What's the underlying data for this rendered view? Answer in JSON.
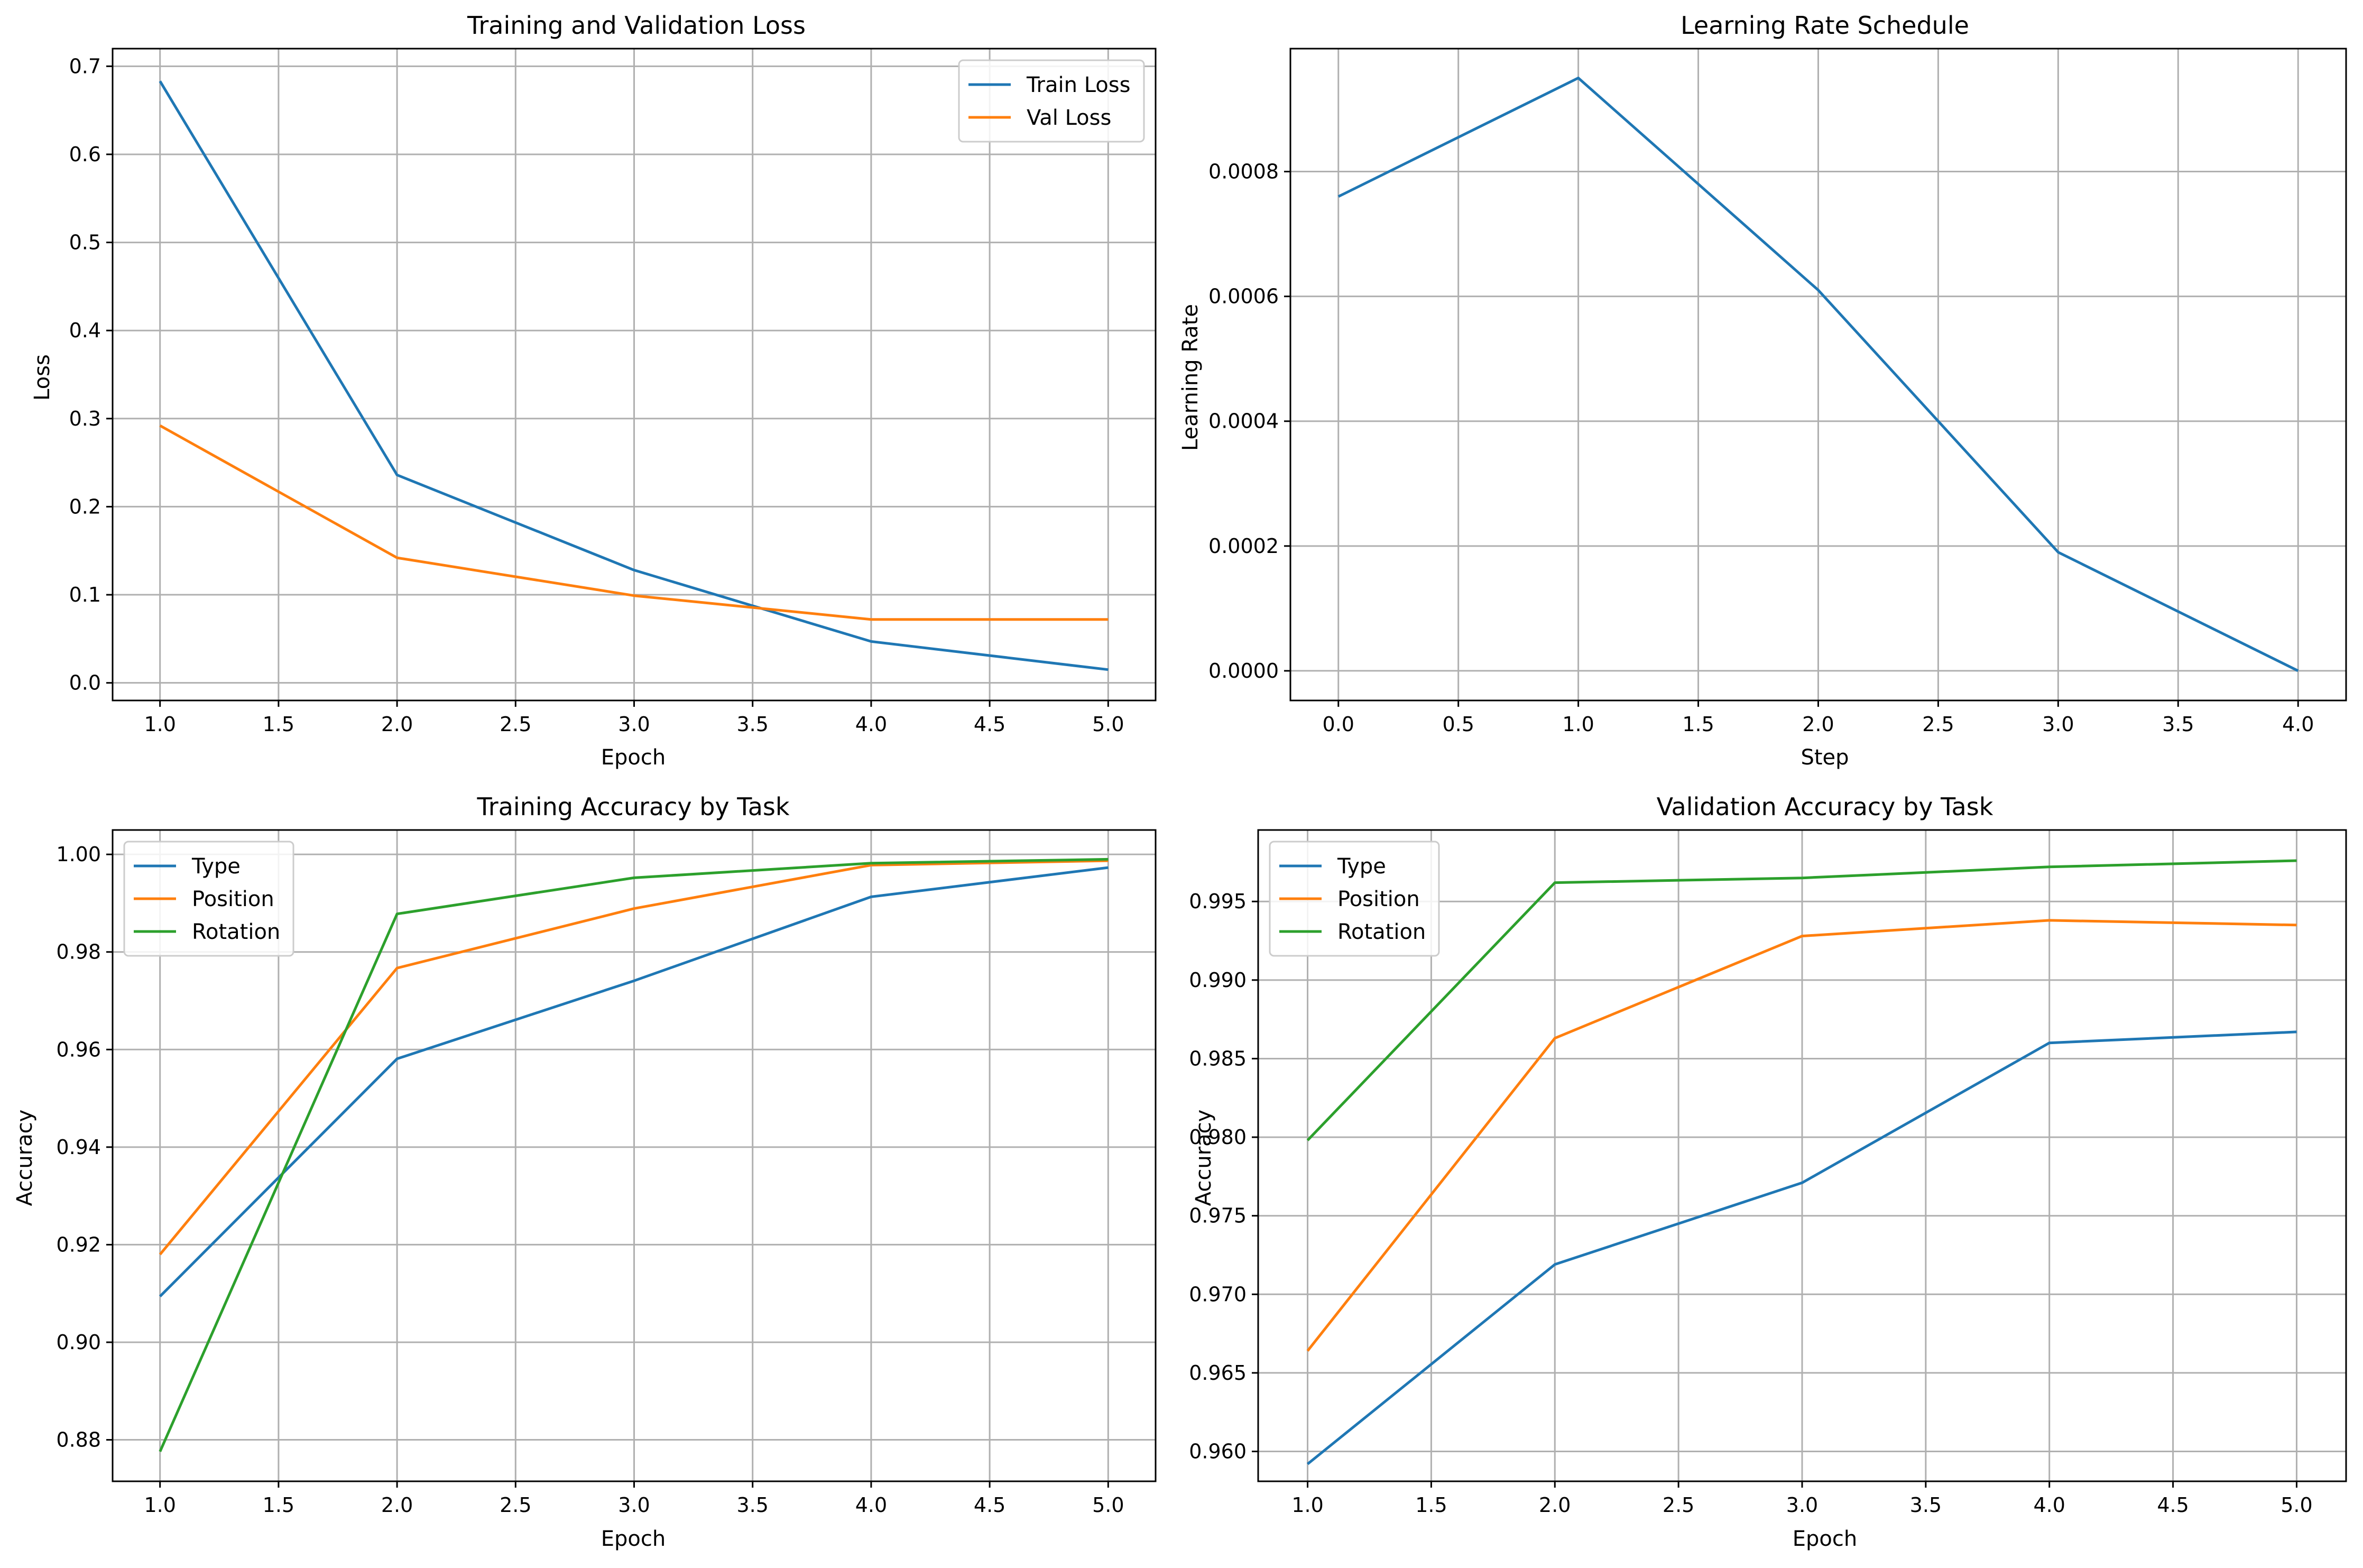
{
  "colors": {
    "blue": "#1f77b4",
    "orange": "#ff7f0e",
    "green": "#2ca02c",
    "grid": "#b0b0b0"
  },
  "chart_data": [
    {
      "type": "line",
      "title": "Training and Validation Loss",
      "xlabel": "Epoch",
      "ylabel": "Loss",
      "xlim": [
        0.8,
        5.2
      ],
      "ylim": [
        -0.02,
        0.72
      ],
      "xticks": [
        1.0,
        1.5,
        2.0,
        2.5,
        3.0,
        3.5,
        4.0,
        4.5,
        5.0
      ],
      "xtick_labels": [
        "1.0",
        "1.5",
        "2.0",
        "2.5",
        "3.0",
        "3.5",
        "4.0",
        "4.5",
        "5.0"
      ],
      "yticks": [
        0.0,
        0.1,
        0.2,
        0.3,
        0.4,
        0.5,
        0.6,
        0.7
      ],
      "ytick_labels": [
        "0.0",
        "0.1",
        "0.2",
        "0.3",
        "0.4",
        "0.5",
        "0.6",
        "0.7"
      ],
      "grid": true,
      "legend": "upper right",
      "x": [
        1,
        2,
        3,
        4,
        5
      ],
      "series": [
        {
          "name": "Train Loss",
          "color": "#1f77b4",
          "values": [
            0.683,
            0.236,
            0.128,
            0.047,
            0.015
          ]
        },
        {
          "name": "Val Loss",
          "color": "#ff7f0e",
          "values": [
            0.292,
            0.142,
            0.099,
            0.072,
            0.072
          ]
        }
      ]
    },
    {
      "type": "line",
      "title": "Learning Rate Schedule",
      "xlabel": "Step",
      "ylabel": "Learning Rate",
      "xlim": [
        -0.2,
        4.2
      ],
      "ylim": [
        -4.75e-05,
        0.000997
      ],
      "xticks": [
        0.0,
        0.5,
        1.0,
        1.5,
        2.0,
        2.5,
        3.0,
        3.5,
        4.0
      ],
      "xtick_labels": [
        "0.0",
        "0.5",
        "1.0",
        "1.5",
        "2.0",
        "2.5",
        "3.0",
        "3.5",
        "4.0"
      ],
      "yticks": [
        0.0,
        0.0002,
        0.0004,
        0.0006,
        0.0008
      ],
      "ytick_labels": [
        "0.0000",
        "0.0002",
        "0.0004",
        "0.0006",
        "0.0008"
      ],
      "grid": true,
      "legend": "none",
      "x": [
        0,
        1,
        2,
        3,
        4
      ],
      "series": [
        {
          "color": "#1f77b4",
          "values": [
            0.00076,
            0.00095,
            0.00061,
            0.00019,
            0.0
          ]
        }
      ]
    },
    {
      "type": "line",
      "title": "Training Accuracy by Task",
      "xlabel": "Epoch",
      "ylabel": "Accuracy",
      "xlim": [
        0.8,
        5.2
      ],
      "ylim": [
        0.8715,
        1.005
      ],
      "xticks": [
        1.0,
        1.5,
        2.0,
        2.5,
        3.0,
        3.5,
        4.0,
        4.5,
        5.0
      ],
      "xtick_labels": [
        "1.0",
        "1.5",
        "2.0",
        "2.5",
        "3.0",
        "3.5",
        "4.0",
        "4.5",
        "5.0"
      ],
      "yticks": [
        0.88,
        0.9,
        0.92,
        0.94,
        0.96,
        0.98,
        1.0
      ],
      "ytick_labels": [
        "0.88",
        "0.90",
        "0.92",
        "0.94",
        "0.96",
        "0.98",
        "1.00"
      ],
      "grid": true,
      "legend": "upper left",
      "x": [
        1,
        2,
        3,
        4,
        5
      ],
      "series": [
        {
          "name": "Type",
          "color": "#1f77b4",
          "values": [
            0.9094,
            0.9581,
            0.9741,
            0.9913,
            0.9973
          ]
        },
        {
          "name": "Position",
          "color": "#ff7f0e",
          "values": [
            0.918,
            0.9767,
            0.9889,
            0.9978,
            0.9987
          ]
        },
        {
          "name": "Rotation",
          "color": "#2ca02c",
          "values": [
            0.8776,
            0.9878,
            0.9952,
            0.9982,
            0.999
          ]
        }
      ]
    },
    {
      "type": "line",
      "title": "Validation Accuracy by Task",
      "xlabel": "Epoch",
      "ylabel": "Accuracy",
      "xlim": [
        0.8,
        5.2
      ],
      "ylim": [
        0.9581,
        0.99955
      ],
      "xticks": [
        1.0,
        1.5,
        2.0,
        2.5,
        3.0,
        3.5,
        4.0,
        4.5,
        5.0
      ],
      "xtick_labels": [
        "1.0",
        "1.5",
        "2.0",
        "2.5",
        "3.0",
        "3.5",
        "4.0",
        "4.5",
        "5.0"
      ],
      "yticks": [
        0.96,
        0.965,
        0.97,
        0.975,
        0.98,
        0.985,
        0.99,
        0.995
      ],
      "ytick_labels": [
        "0.960",
        "0.965",
        "0.970",
        "0.975",
        "0.980",
        "0.985",
        "0.990",
        "0.995"
      ],
      "grid": true,
      "legend": "upper left",
      "x": [
        1,
        2,
        3,
        4,
        5
      ],
      "series": [
        {
          "name": "Type",
          "color": "#1f77b4",
          "values": [
            0.9592,
            0.9719,
            0.9771,
            0.986,
            0.9867
          ]
        },
        {
          "name": "Position",
          "color": "#ff7f0e",
          "values": [
            0.9664,
            0.9863,
            0.9928,
            0.9938,
            0.9935
          ]
        },
        {
          "name": "Rotation",
          "color": "#2ca02c",
          "values": [
            0.9798,
            0.9962,
            0.9965,
            0.9972,
            0.9976
          ]
        }
      ]
    }
  ]
}
